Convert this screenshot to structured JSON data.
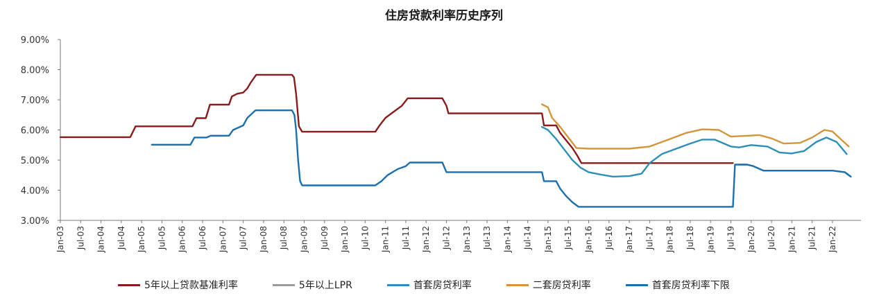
{
  "chart_data": {
    "type": "line",
    "title": "住房贷款利率历史序列",
    "xlabel": "",
    "ylabel": "",
    "ylim": [
      3.0,
      9.0
    ],
    "y_ticks": [
      "3.00%",
      "4.00%",
      "5.00%",
      "6.00%",
      "7.00%",
      "8.00%",
      "9.00%"
    ],
    "x_range": [
      2003.0,
      2022.7
    ],
    "x_ticks": [
      {
        "t": 2003.0,
        "label": "Jan-03"
      },
      {
        "t": 2003.5,
        "label": "Jul-03"
      },
      {
        "t": 2004.0,
        "label": "Jan-04"
      },
      {
        "t": 2004.5,
        "label": "Jul-04"
      },
      {
        "t": 2005.0,
        "label": "Jan-05"
      },
      {
        "t": 2005.5,
        "label": "Jul-05"
      },
      {
        "t": 2006.0,
        "label": "Jan-06"
      },
      {
        "t": 2006.5,
        "label": "Jul-06"
      },
      {
        "t": 2007.0,
        "label": "Jan-07"
      },
      {
        "t": 2007.5,
        "label": "Jul-07"
      },
      {
        "t": 2008.0,
        "label": "Jan-08"
      },
      {
        "t": 2008.5,
        "label": "Jul-08"
      },
      {
        "t": 2009.0,
        "label": "Jan-09"
      },
      {
        "t": 2009.5,
        "label": "Jul-09"
      },
      {
        "t": 2010.0,
        "label": "Jan-10"
      },
      {
        "t": 2010.5,
        "label": "Jul-10"
      },
      {
        "t": 2011.0,
        "label": "Jan-11"
      },
      {
        "t": 2011.5,
        "label": "Jul-11"
      },
      {
        "t": 2012.0,
        "label": "Jan-12"
      },
      {
        "t": 2012.5,
        "label": "Jul-12"
      },
      {
        "t": 2013.0,
        "label": "Jan-13"
      },
      {
        "t": 2013.5,
        "label": "Jul-13"
      },
      {
        "t": 2014.0,
        "label": "Jan-14"
      },
      {
        "t": 2014.5,
        "label": "Jul-14"
      },
      {
        "t": 2015.0,
        "label": "Jan-15"
      },
      {
        "t": 2015.5,
        "label": "Jul-15"
      },
      {
        "t": 2016.0,
        "label": "Jan-16"
      },
      {
        "t": 2016.5,
        "label": "Jul-16"
      },
      {
        "t": 2017.0,
        "label": "Jan-17"
      },
      {
        "t": 2017.5,
        "label": "Jul-17"
      },
      {
        "t": 2018.0,
        "label": "Jan-18"
      },
      {
        "t": 2018.5,
        "label": "Jul-18"
      },
      {
        "t": 2019.0,
        "label": "Jan-19"
      },
      {
        "t": 2019.5,
        "label": "Jul-19"
      },
      {
        "t": 2020.0,
        "label": "Jan-20"
      },
      {
        "t": 2020.5,
        "label": "Jul-20"
      },
      {
        "t": 2021.0,
        "label": "Jan-21"
      },
      {
        "t": 2021.5,
        "label": "Jul-21"
      },
      {
        "t": 2022.0,
        "label": "Jan-22"
      }
    ],
    "grid": false,
    "legend_position": "bottom",
    "series": [
      {
        "name": "5年以上贷款基准利率",
        "color": "#8b1a1a",
        "points": [
          [
            2003.0,
            5.76
          ],
          [
            2004.72,
            5.76
          ],
          [
            2004.85,
            6.12
          ],
          [
            2006.25,
            6.12
          ],
          [
            2006.35,
            6.39
          ],
          [
            2006.58,
            6.39
          ],
          [
            2006.68,
            6.84
          ],
          [
            2007.15,
            6.84
          ],
          [
            2007.22,
            7.11
          ],
          [
            2007.35,
            7.2
          ],
          [
            2007.5,
            7.24
          ],
          [
            2007.6,
            7.38
          ],
          [
            2007.68,
            7.56
          ],
          [
            2007.82,
            7.83
          ],
          [
            2008.7,
            7.83
          ],
          [
            2008.75,
            7.74
          ],
          [
            2008.8,
            7.2
          ],
          [
            2008.87,
            6.12
          ],
          [
            2008.95,
            5.94
          ],
          [
            2010.75,
            5.94
          ],
          [
            2010.85,
            6.14
          ],
          [
            2011.0,
            6.4
          ],
          [
            2011.2,
            6.6
          ],
          [
            2011.4,
            6.8
          ],
          [
            2011.55,
            7.05
          ],
          [
            2012.4,
            7.05
          ],
          [
            2012.5,
            6.8
          ],
          [
            2012.55,
            6.55
          ],
          [
            2014.85,
            6.55
          ],
          [
            2014.9,
            6.15
          ],
          [
            2015.2,
            6.15
          ],
          [
            2015.3,
            5.9
          ],
          [
            2015.45,
            5.65
          ],
          [
            2015.6,
            5.4
          ],
          [
            2015.72,
            5.15
          ],
          [
            2015.82,
            4.9
          ],
          [
            2019.55,
            4.9
          ]
        ]
      },
      {
        "name": "5年以上LPR",
        "color": "#9a9a9a",
        "points": [
          [
            2019.7,
            4.85
          ],
          [
            2019.9,
            4.85
          ],
          [
            2020.05,
            4.8
          ],
          [
            2020.3,
            4.65
          ],
          [
            2022.0,
            4.65
          ],
          [
            2022.3,
            4.6
          ],
          [
            2022.45,
            4.45
          ]
        ]
      },
      {
        "name": "首套房贷利率",
        "color": "#2b8fb8",
        "points": [
          [
            2014.85,
            6.1
          ],
          [
            2015.0,
            6.0
          ],
          [
            2015.2,
            5.7
          ],
          [
            2015.4,
            5.35
          ],
          [
            2015.6,
            5.0
          ],
          [
            2015.8,
            4.75
          ],
          [
            2016.0,
            4.6
          ],
          [
            2016.3,
            4.52
          ],
          [
            2016.6,
            4.45
          ],
          [
            2017.0,
            4.47
          ],
          [
            2017.3,
            4.55
          ],
          [
            2017.5,
            4.9
          ],
          [
            2017.8,
            5.2
          ],
          [
            2018.1,
            5.35
          ],
          [
            2018.5,
            5.55
          ],
          [
            2018.8,
            5.68
          ],
          [
            2019.1,
            5.68
          ],
          [
            2019.5,
            5.45
          ],
          [
            2019.7,
            5.42
          ],
          [
            2020.0,
            5.5
          ],
          [
            2020.4,
            5.45
          ],
          [
            2020.7,
            5.25
          ],
          [
            2021.0,
            5.22
          ],
          [
            2021.3,
            5.3
          ],
          [
            2021.6,
            5.6
          ],
          [
            2021.85,
            5.75
          ],
          [
            2022.1,
            5.6
          ],
          [
            2022.35,
            5.2
          ]
        ]
      },
      {
        "name": "二套房贷利率",
        "color": "#d4953a",
        "points": [
          [
            2014.85,
            6.85
          ],
          [
            2015.0,
            6.75
          ],
          [
            2015.1,
            6.4
          ],
          [
            2015.3,
            6.1
          ],
          [
            2015.5,
            5.75
          ],
          [
            2015.7,
            5.4
          ],
          [
            2016.0,
            5.38
          ],
          [
            2017.0,
            5.38
          ],
          [
            2017.5,
            5.45
          ],
          [
            2018.0,
            5.7
          ],
          [
            2018.4,
            5.9
          ],
          [
            2018.8,
            6.02
          ],
          [
            2019.2,
            6.0
          ],
          [
            2019.5,
            5.78
          ],
          [
            2019.8,
            5.8
          ],
          [
            2020.2,
            5.83
          ],
          [
            2020.5,
            5.72
          ],
          [
            2020.8,
            5.55
          ],
          [
            2021.2,
            5.57
          ],
          [
            2021.5,
            5.75
          ],
          [
            2021.8,
            6.0
          ],
          [
            2022.0,
            5.95
          ],
          [
            2022.2,
            5.7
          ],
          [
            2022.4,
            5.45
          ]
        ]
      },
      {
        "name": "首套房贷利率下限",
        "color": "#1a6fb0",
        "points": [
          [
            2005.25,
            5.51
          ],
          [
            2006.2,
            5.51
          ],
          [
            2006.3,
            5.75
          ],
          [
            2006.6,
            5.75
          ],
          [
            2006.7,
            5.81
          ],
          [
            2007.15,
            5.81
          ],
          [
            2007.25,
            6.0
          ],
          [
            2007.5,
            6.15
          ],
          [
            2007.6,
            6.4
          ],
          [
            2007.8,
            6.65
          ],
          [
            2008.7,
            6.65
          ],
          [
            2008.76,
            6.5
          ],
          [
            2008.8,
            6.0
          ],
          [
            2008.85,
            5.0
          ],
          [
            2008.9,
            4.3
          ],
          [
            2008.95,
            4.16
          ],
          [
            2010.75,
            4.16
          ],
          [
            2010.9,
            4.3
          ],
          [
            2011.05,
            4.5
          ],
          [
            2011.3,
            4.7
          ],
          [
            2011.5,
            4.8
          ],
          [
            2011.6,
            4.92
          ],
          [
            2012.4,
            4.92
          ],
          [
            2012.5,
            4.6
          ],
          [
            2014.85,
            4.6
          ],
          [
            2014.9,
            4.3
          ],
          [
            2015.2,
            4.3
          ],
          [
            2015.3,
            4.05
          ],
          [
            2015.45,
            3.8
          ],
          [
            2015.6,
            3.6
          ],
          [
            2015.75,
            3.45
          ],
          [
            2019.55,
            3.45
          ],
          [
            2019.6,
            4.85
          ],
          [
            2019.9,
            4.85
          ],
          [
            2020.05,
            4.8
          ],
          [
            2020.3,
            4.65
          ],
          [
            2022.0,
            4.65
          ],
          [
            2022.3,
            4.6
          ],
          [
            2022.45,
            4.45
          ]
        ]
      }
    ]
  }
}
